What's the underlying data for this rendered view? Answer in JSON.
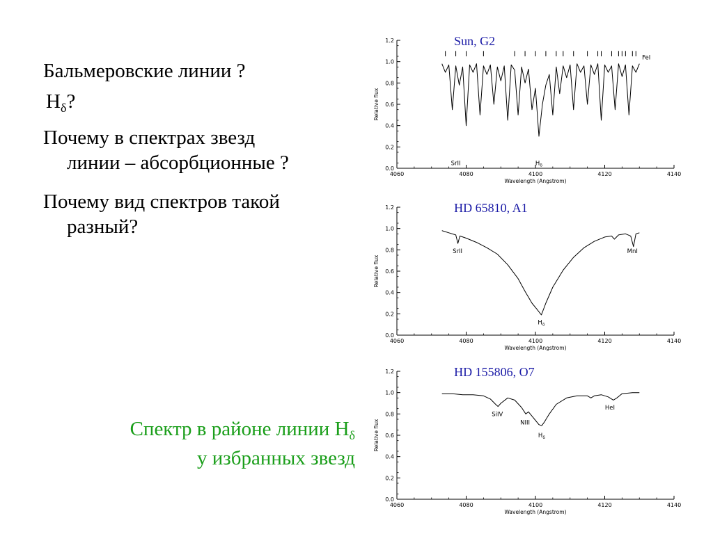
{
  "questions": {
    "q1": "Бальмеровские линии ?",
    "q2_main": "H",
    "q2_sub": "δ",
    "q2_tail": "?",
    "q3_line1": "Почему в спектрах звезд",
    "q3_line2": "линии – абсорбционные ?",
    "q4_line1": "Почему вид спектров такой",
    "q4_line2": "разный?"
  },
  "caption": {
    "line1_main": "Спектр в районе линии H",
    "line1_sub": "δ",
    "line2": "у избранных звезд"
  },
  "colors": {
    "caption": "#1a9e1a",
    "star_label": "#1a1aa6",
    "line": "#000000"
  },
  "chart_data": [
    {
      "type": "line",
      "title": "Sun, G2",
      "xlabel": "Wavelength (Angstrom)",
      "ylabel": "Relative flux",
      "xlim": [
        4060,
        4140
      ],
      "ylim": [
        0.0,
        1.2
      ],
      "xticks": [
        "4060",
        "4080",
        "4100",
        "4120",
        "4140"
      ],
      "yticks": [
        "0.0",
        "0.2",
        "0.4",
        "0.6",
        "0.8",
        "1.0",
        "1.2"
      ],
      "series": [
        {
          "x": [
            4073,
            4074,
            4075,
            4076,
            4077,
            4078,
            4079,
            4080,
            4081,
            4082,
            4083,
            4084,
            4085,
            4086,
            4087,
            4088,
            4089,
            4090,
            4091,
            4092,
            4093,
            4094,
            4095,
            4096,
            4097,
            4098,
            4099,
            4100,
            4101,
            4102,
            4103,
            4104,
            4105,
            4106,
            4107,
            4108,
            4109,
            4110,
            4111,
            4112,
            4113,
            4114,
            4115,
            4116,
            4117,
            4118,
            4119,
            4120,
            4121,
            4122,
            4123,
            4124,
            4125,
            4126,
            4127,
            4128,
            4129,
            4130
          ],
          "y": [
            0.98,
            0.9,
            0.97,
            0.55,
            0.96,
            0.78,
            0.95,
            0.4,
            0.97,
            0.9,
            0.98,
            0.5,
            0.96,
            0.88,
            0.97,
            0.6,
            0.95,
            0.82,
            0.96,
            0.45,
            0.97,
            0.92,
            0.5,
            0.95,
            0.8,
            0.93,
            0.55,
            0.75,
            0.3,
            0.6,
            0.78,
            0.88,
            0.5,
            0.95,
            0.7,
            0.96,
            0.85,
            0.97,
            0.55,
            0.98,
            0.9,
            0.96,
            0.6,
            0.97,
            0.88,
            0.98,
            0.45,
            0.97,
            0.9,
            0.96,
            0.55,
            0.98,
            0.86,
            0.97,
            0.5,
            0.96,
            0.9,
            0.98
          ]
        }
      ],
      "annotations": [
        {
          "text": "FeI",
          "x": 4132,
          "y": 1.02
        },
        {
          "text": "SrII",
          "x": 4077,
          "y": 0.03
        },
        {
          "text": "Hδ",
          "x": 4101,
          "y": 0.03
        }
      ],
      "marker_ticks": [
        4074,
        4077,
        4080,
        4085,
        4094,
        4097,
        4100,
        4103,
        4106,
        4108,
        4111,
        4115,
        4118,
        4119,
        4122,
        4124,
        4125,
        4126,
        4128,
        4129
      ]
    },
    {
      "type": "line",
      "title": "HD 65810, A1",
      "xlabel": "Wavelength (Angstrom)",
      "ylabel": "Relative flux",
      "xlim": [
        4060,
        4140
      ],
      "ylim": [
        0.0,
        1.2
      ],
      "xticks": [
        "4060",
        "4080",
        "4100",
        "4120",
        "4140"
      ],
      "yticks": [
        "0.0",
        "0.2",
        "0.4",
        "0.6",
        "0.8",
        "1.0",
        "1.2"
      ],
      "series": [
        {
          "x": [
            4073,
            4075,
            4077,
            4077.6,
            4078.2,
            4080,
            4083,
            4086,
            4089,
            4092,
            4095,
            4097,
            4099,
            4100.5,
            4101.7,
            4103,
            4105,
            4108,
            4111,
            4114,
            4117,
            4120,
            4122,
            4122.8,
            4124,
            4126,
            4127.5,
            4128.3,
            4129,
            4130
          ],
          "y": [
            0.98,
            0.96,
            0.94,
            0.86,
            0.93,
            0.91,
            0.87,
            0.82,
            0.76,
            0.66,
            0.53,
            0.41,
            0.3,
            0.24,
            0.19,
            0.3,
            0.45,
            0.61,
            0.73,
            0.82,
            0.88,
            0.92,
            0.93,
            0.9,
            0.94,
            0.95,
            0.93,
            0.83,
            0.95,
            0.96
          ]
        }
      ],
      "annotations": [
        {
          "text": "SrII",
          "x": 4077.5,
          "y": 0.77
        },
        {
          "text": "MnI",
          "x": 4128,
          "y": 0.77
        },
        {
          "text": "Hδ",
          "x": 4101.7,
          "y": 0.1
        }
      ]
    },
    {
      "type": "line",
      "title": "HD 155806, O7",
      "xlabel": "Wavelength (Angstrom)",
      "ylabel": "Relative flux",
      "xlim": [
        4060,
        4140
      ],
      "ylim": [
        0.0,
        1.2
      ],
      "xticks": [
        "4060",
        "4080",
        "4100",
        "4120",
        "4140"
      ],
      "yticks": [
        "0.0",
        "0.2",
        "0.4",
        "0.6",
        "0.8",
        "1.0",
        "1.2"
      ],
      "series": [
        {
          "x": [
            4073,
            4076,
            4079,
            4082,
            4085,
            4087,
            4088.5,
            4089.2,
            4090,
            4092,
            4094,
            4096,
            4097.2,
            4098,
            4099,
            4100,
            4101,
            4101.8,
            4102.5,
            4104,
            4106,
            4109,
            4112,
            4115,
            4116,
            4117,
            4119,
            4121,
            4122.5,
            4123.5,
            4125,
            4128,
            4130
          ],
          "y": [
            0.99,
            0.99,
            0.98,
            0.98,
            0.97,
            0.94,
            0.89,
            0.87,
            0.9,
            0.95,
            0.93,
            0.86,
            0.8,
            0.82,
            0.78,
            0.74,
            0.7,
            0.69,
            0.72,
            0.8,
            0.89,
            0.95,
            0.97,
            0.97,
            0.95,
            0.97,
            0.98,
            0.96,
            0.93,
            0.95,
            0.99,
            1.0,
            1.0
          ]
        }
      ],
      "annotations": [
        {
          "text": "SiIV",
          "x": 4089,
          "y": 0.78
        },
        {
          "text": "NIII",
          "x": 4097,
          "y": 0.7
        },
        {
          "text": "Hδ",
          "x": 4101.8,
          "y": 0.58
        },
        {
          "text": "HeI",
          "x": 4121.5,
          "y": 0.84
        }
      ]
    }
  ]
}
